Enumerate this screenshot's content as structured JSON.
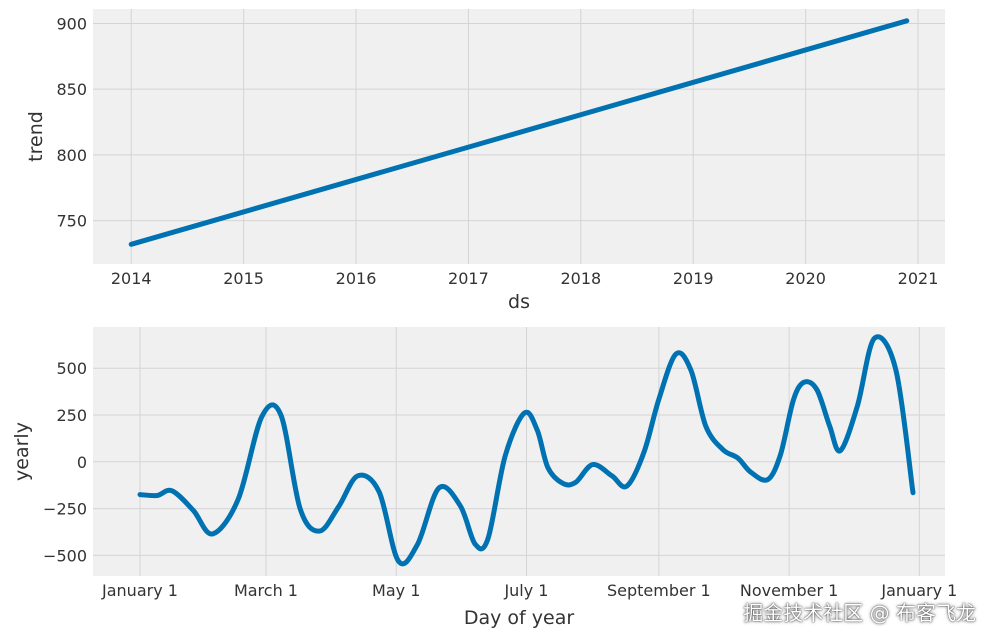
{
  "colors": {
    "background": "#ffffff",
    "panel": "#f0f0f0",
    "grid": "#d4d4d4",
    "line": "#0072B2",
    "text": "#333333"
  },
  "watermark": "掘金技术社区 @ 布客飞龙",
  "chart_data": [
    {
      "type": "line",
      "title": "",
      "xlabel": "ds",
      "ylabel": "trend",
      "grid": true,
      "x_ticks": [
        "2014",
        "2015",
        "2016",
        "2017",
        "2018",
        "2019",
        "2020",
        "2021"
      ],
      "y_ticks": [
        750,
        800,
        850,
        900
      ],
      "xlim": [
        2013.66,
        2021.24
      ],
      "ylim": [
        717,
        911
      ],
      "series": [
        {
          "x": [
            2014.0,
            2020.9
          ],
          "values": [
            732,
            902
          ]
        }
      ]
    },
    {
      "type": "line",
      "title": "",
      "xlabel": "Day of year",
      "ylabel": "yearly",
      "grid": true,
      "x_ticks": [
        "January 1",
        "March 1",
        "May 1",
        "July 1",
        "September 1",
        "November 1",
        "January 1"
      ],
      "x_tick_days": [
        0,
        59,
        120,
        181,
        243,
        304,
        365
      ],
      "y_ticks": [
        -500,
        -250,
        0,
        250,
        500
      ],
      "xlim": [
        -22,
        377
      ],
      "ylim": [
        -610,
        720
      ],
      "series": [
        {
          "x": [
            0,
            8,
            15,
            25,
            34,
            46,
            57,
            66,
            75,
            84,
            93,
            102,
            112,
            121,
            130,
            140,
            150,
            157,
            163,
            171,
            180,
            186,
            191,
            198,
            204,
            212,
            221,
            228,
            236,
            243,
            251,
            258,
            265,
            273,
            280,
            286,
            294,
            300,
            306,
            311,
            317,
            323,
            328,
            336,
            344,
            354,
            362
          ],
          "values": [
            -175,
            -180,
            -155,
            -260,
            -385,
            -200,
            240,
            250,
            -250,
            -370,
            -240,
            -75,
            -160,
            -530,
            -440,
            -140,
            -235,
            -440,
            -410,
            30,
            260,
            170,
            -30,
            -115,
            -110,
            -15,
            -75,
            -130,
            50,
            335,
            575,
            490,
            190,
            65,
            20,
            -55,
            -95,
            40,
            330,
            425,
            385,
            190,
            60,
            300,
            660,
            490,
            -165
          ]
        }
      ]
    }
  ]
}
